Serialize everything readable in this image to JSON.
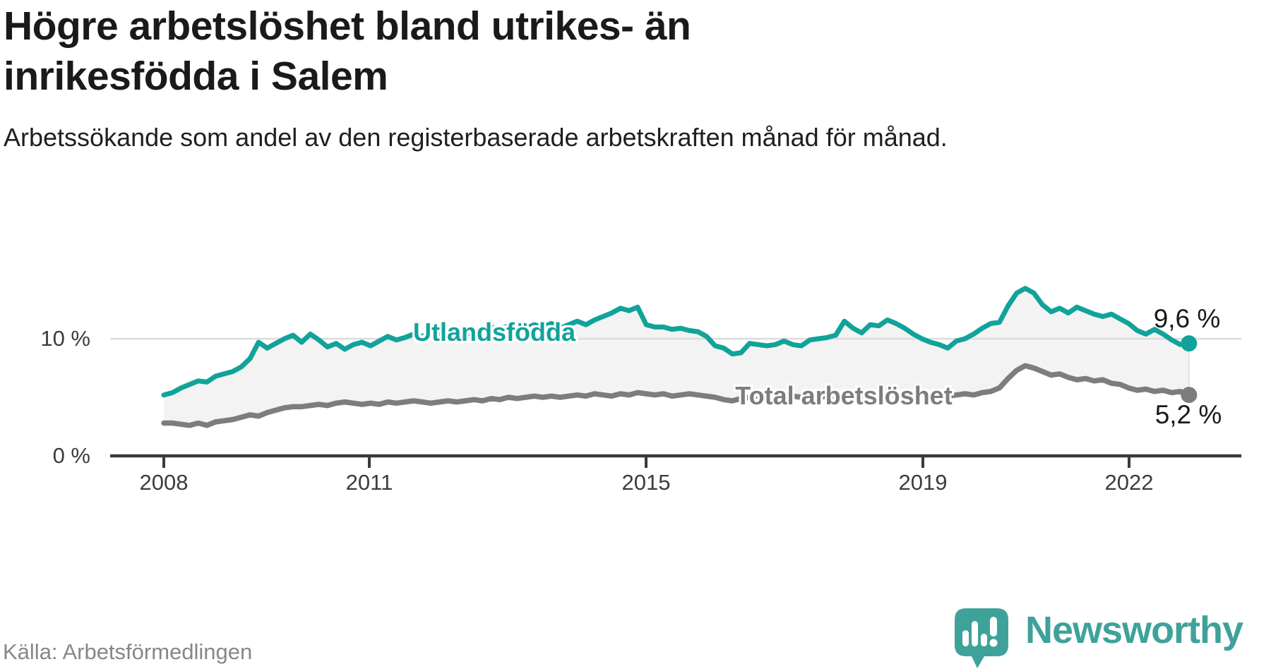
{
  "header": {
    "title": "Högre arbetslöshet bland utrikes- än inrikesfödda i Salem",
    "subtitle": "Arbetssökande som andel av den registerbaserade arbetskraften månad för månad."
  },
  "chart_data": {
    "type": "line",
    "x_unit": "year",
    "x_start": 2008.0,
    "x_step_years": 0.125,
    "x_range": [
      2008.0,
      2022.875
    ],
    "ylim": [
      0,
      18
    ],
    "y_ticks": [
      "0 %",
      "10 %"
    ],
    "y_tick_values": [
      0,
      10
    ],
    "gridlines_at": [
      10
    ],
    "x_ticks": [
      "2008",
      "2011",
      "2015",
      "2019",
      "2022"
    ],
    "x_tick_years": [
      2008,
      2011,
      2015,
      2019,
      2022
    ],
    "legend_position": "inline-labels",
    "band_fill": "#f3f3f3",
    "series": [
      {
        "name": "Utlandsfödda",
        "color": "#11a39a",
        "end_label": "9,6 %",
        "end_value": 9.6,
        "values": [
          5.2,
          5.4,
          5.8,
          6.1,
          6.4,
          6.3,
          6.8,
          7.0,
          7.2,
          7.6,
          8.3,
          9.7,
          9.2,
          9.6,
          10.0,
          10.3,
          9.7,
          10.4,
          9.9,
          9.3,
          9.6,
          9.1,
          9.5,
          9.7,
          9.4,
          9.8,
          10.2,
          9.9,
          10.1,
          10.4,
          10.2,
          10.5,
          10.3,
          10.1,
          10.4,
          10.6,
          10.3,
          10.7,
          11.0,
          10.8,
          11.1,
          10.6,
          10.9,
          11.2,
          11.0,
          11.3,
          10.9,
          11.2,
          11.5,
          11.2,
          11.6,
          11.9,
          12.2,
          12.6,
          12.4,
          12.7,
          11.2,
          11.0,
          11.0,
          10.8,
          10.9,
          10.7,
          10.6,
          10.2,
          9.4,
          9.2,
          8.7,
          8.8,
          9.6,
          9.5,
          9.4,
          9.5,
          9.8,
          9.5,
          9.4,
          9.9,
          10.0,
          10.1,
          10.3,
          11.5,
          10.9,
          10.5,
          11.2,
          11.1,
          11.6,
          11.3,
          10.9,
          10.4,
          10.0,
          9.7,
          9.5,
          9.2,
          9.8,
          10.0,
          10.4,
          10.9,
          11.3,
          11.4,
          12.8,
          13.9,
          14.3,
          13.9,
          12.9,
          12.3,
          12.6,
          12.2,
          12.7,
          12.4,
          12.1,
          11.9,
          12.1,
          11.7,
          11.3,
          10.7,
          10.4,
          10.8,
          10.4,
          9.9,
          9.5,
          9.6
        ]
      },
      {
        "name": "Total arbetslöshet",
        "color": "#7d7d80",
        "end_label": "5,2 %",
        "end_value": 5.2,
        "values": [
          2.8,
          2.8,
          2.7,
          2.6,
          2.8,
          2.6,
          2.9,
          3.0,
          3.1,
          3.3,
          3.5,
          3.4,
          3.7,
          3.9,
          4.1,
          4.2,
          4.2,
          4.3,
          4.4,
          4.3,
          4.5,
          4.6,
          4.5,
          4.4,
          4.5,
          4.4,
          4.6,
          4.5,
          4.6,
          4.7,
          4.6,
          4.5,
          4.6,
          4.7,
          4.6,
          4.7,
          4.8,
          4.7,
          4.9,
          4.8,
          5.0,
          4.9,
          5.0,
          5.1,
          5.0,
          5.1,
          5.0,
          5.1,
          5.2,
          5.1,
          5.3,
          5.2,
          5.1,
          5.3,
          5.2,
          5.4,
          5.3,
          5.2,
          5.3,
          5.1,
          5.2,
          5.3,
          5.2,
          5.1,
          5.0,
          4.8,
          4.7,
          4.9,
          5.0,
          5.1,
          5.2,
          5.1,
          5.2,
          5.1,
          5.0,
          5.1,
          5.0,
          5.1,
          5.0,
          5.1,
          5.2,
          5.1,
          5.2,
          5.1,
          5.2,
          5.3,
          5.2,
          5.1,
          5.2,
          5.1,
          5.0,
          5.1,
          5.2,
          5.3,
          5.2,
          5.4,
          5.5,
          5.8,
          6.6,
          7.3,
          7.7,
          7.5,
          7.2,
          6.9,
          7.0,
          6.7,
          6.5,
          6.6,
          6.4,
          6.5,
          6.2,
          6.1,
          5.8,
          5.6,
          5.7,
          5.5,
          5.6,
          5.4,
          5.5,
          5.2
        ]
      }
    ]
  },
  "colors": {
    "accent_teal": "#11a39a",
    "series_gray": "#7d7d80",
    "band": "#f3f3f3",
    "grid": "#dcdcdc",
    "axis": "#3a3a3a",
    "brand": "#3fa29a"
  },
  "footer": {
    "source": "Källa: Arbetsförmedlingen",
    "brand": "Newsworthy"
  }
}
